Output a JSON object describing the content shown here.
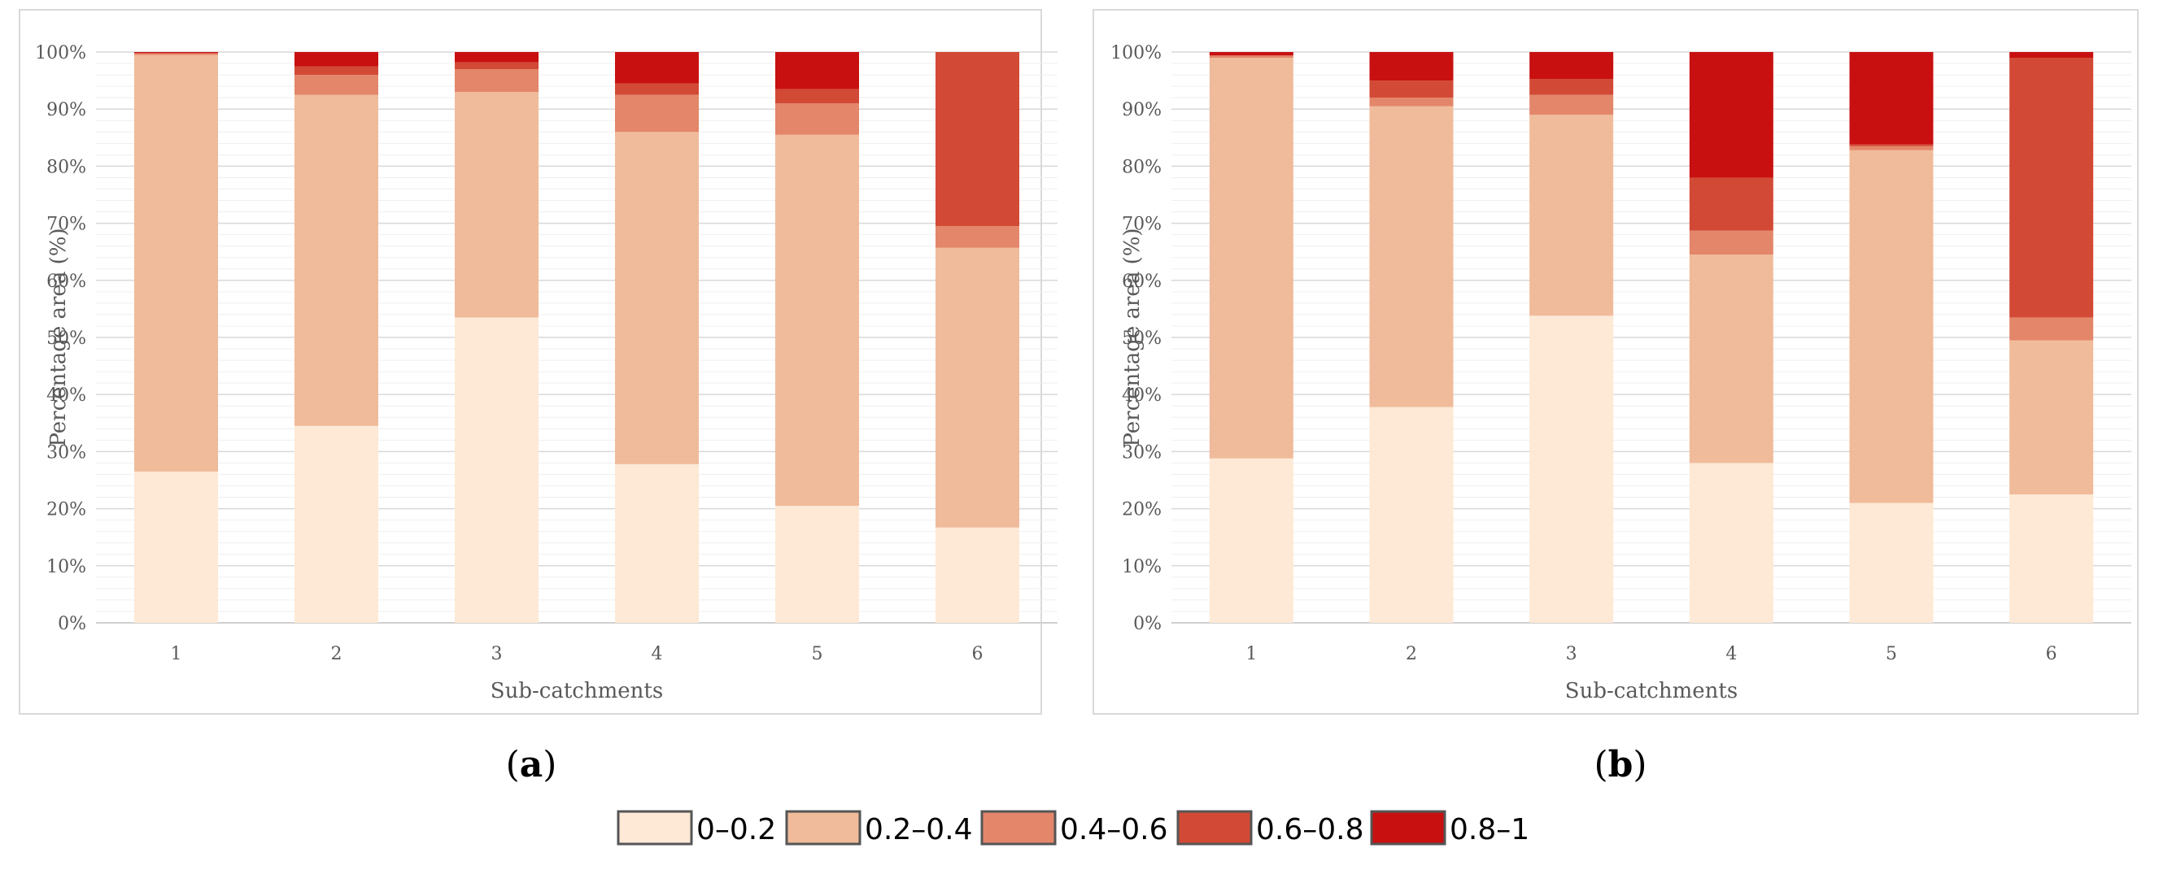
{
  "legend": {
    "items": [
      {
        "label": "0–0.2",
        "color": "#fde9d6"
      },
      {
        "label": "0.2–0.4",
        "color": "#f0bb9a"
      },
      {
        "label": "0.4–0.6",
        "color": "#e3866a"
      },
      {
        "label": "0.6–0.8",
        "color": "#d24a35"
      },
      {
        "label": "0.8–1",
        "color": "#c81010"
      }
    ]
  },
  "chart_data": [
    {
      "type": "bar",
      "stacked": true,
      "panel_label": {
        "open": "(",
        "letter": "a",
        "close": ")"
      },
      "xlabel": "Sub-catchments",
      "ylabel": "Percentage area (%)",
      "ylim": [
        0,
        100
      ],
      "yticks": [
        "0%",
        "10%",
        "20%",
        "30%",
        "40%",
        "50%",
        "60%",
        "70%",
        "80%",
        "90%",
        "100%"
      ],
      "categories": [
        "1",
        "2",
        "3",
        "4",
        "5",
        "6"
      ],
      "series": [
        {
          "name": "0–0.2",
          "color": "#fde9d6",
          "values": [
            26.5,
            34.5,
            53.5,
            27.8,
            20.5,
            16.7
          ]
        },
        {
          "name": "0.2–0.4",
          "color": "#f0bb9a",
          "values": [
            73.0,
            58.0,
            39.5,
            58.2,
            65.0,
            49.0
          ]
        },
        {
          "name": "0.4–0.6",
          "color": "#e3866a",
          "values": [
            0.3,
            3.5,
            4.0,
            6.5,
            5.5,
            3.8
          ]
        },
        {
          "name": "0.6–0.8",
          "color": "#d24a35",
          "values": [
            0.0,
            1.5,
            1.2,
            2.0,
            2.5,
            30.5
          ]
        },
        {
          "name": "0.8–1",
          "color": "#c81010",
          "values": [
            0.2,
            2.5,
            1.8,
            5.5,
            6.5,
            0.0
          ]
        }
      ]
    },
    {
      "type": "bar",
      "stacked": true,
      "panel_label": {
        "open": "(",
        "letter": "b",
        "close": ")"
      },
      "xlabel": "Sub-catchments",
      "ylabel": "Percentage area (%)",
      "ylim": [
        0,
        100
      ],
      "yticks": [
        "0%",
        "10%",
        "20%",
        "30%",
        "40%",
        "50%",
        "60%",
        "70%",
        "80%",
        "90%",
        "100%"
      ],
      "categories": [
        "1",
        "2",
        "3",
        "4",
        "5",
        "6"
      ],
      "series": [
        {
          "name": "0–0.2",
          "color": "#fde9d6",
          "values": [
            28.8,
            37.8,
            53.8,
            28.0,
            21.0,
            22.5
          ]
        },
        {
          "name": "0.2–0.4",
          "color": "#f0bb9a",
          "values": [
            70.2,
            52.7,
            35.2,
            36.5,
            61.8,
            27.0
          ]
        },
        {
          "name": "0.4–0.6",
          "color": "#e3866a",
          "values": [
            0.4,
            1.5,
            3.5,
            4.2,
            0.7,
            4.0
          ]
        },
        {
          "name": "0.6–0.8",
          "color": "#d24a35",
          "values": [
            0.0,
            3.0,
            2.8,
            9.3,
            0.3,
            45.5
          ]
        },
        {
          "name": "0.8–1",
          "color": "#c81010",
          "values": [
            0.6,
            5.0,
            4.7,
            22.0,
            16.2,
            1.0
          ]
        }
      ]
    }
  ]
}
